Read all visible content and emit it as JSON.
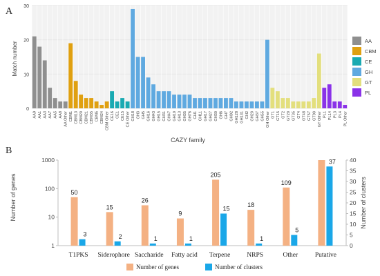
{
  "chart_data": [
    {
      "panel_label": "A",
      "type": "bar",
      "ylabel": "Match number",
      "xlabel": "CAZY family",
      "ylim": [
        0,
        30
      ],
      "yticks": [
        0,
        10,
        20,
        30
      ],
      "grid": true,
      "legend_position": "right",
      "legend": [
        {
          "name": "AA",
          "color": "#8f8f8f"
        },
        {
          "name": "CBM",
          "color": "#e0a010"
        },
        {
          "name": "CE",
          "color": "#19aab2"
        },
        {
          "name": "GH",
          "color": "#5fa9e0"
        },
        {
          "name": "GT",
          "color": "#e3df7d"
        },
        {
          "name": "PL",
          "color": "#8a32e8"
        }
      ],
      "categories": [
        "AA9",
        "AA1",
        "AA3",
        "AA7",
        "AA5",
        "AA8",
        "AA Other",
        "CBM1",
        "CBM13",
        "CBM20",
        "CBM21",
        "CBM35",
        "CBM5",
        "CBM24",
        "CBM Other",
        "CE16",
        "CE1",
        "CE15",
        "CE Other",
        "GH18",
        "GH3",
        "GH5",
        "GH16",
        "GH43",
        "GH15",
        "GH31",
        "GH47",
        "GH10",
        "GH13",
        "GH35",
        "GH76",
        "GH1",
        "GH11",
        "GH17",
        "GH27",
        "GH30",
        "GH6",
        "GH7",
        "GH92",
        "GH128",
        "GH131",
        "GH2",
        "GH20",
        "GH37",
        "GH55",
        "GH Other",
        "GT1",
        "GT15",
        "GT2",
        "GT20",
        "GT35",
        "GT4",
        "GT48",
        "GT57",
        "GT90",
        "GT Other",
        "PL1",
        "PL14",
        "PL3",
        "PL4",
        "PL Other"
      ],
      "values": [
        21,
        18,
        14,
        6,
        3,
        2,
        2,
        19,
        8,
        4,
        3,
        3,
        2,
        1,
        2,
        5,
        2,
        3,
        2,
        29,
        15,
        15,
        9,
        7,
        5,
        5,
        5,
        4,
        4,
        4,
        4,
        3,
        3,
        3,
        3,
        3,
        3,
        3,
        3,
        2,
        2,
        2,
        2,
        2,
        2,
        20,
        6,
        5,
        3,
        3,
        2,
        2,
        2,
        2,
        3,
        16,
        6,
        7,
        2,
        2,
        1
      ],
      "group_sizes": [
        7,
        8,
        4,
        27,
        10,
        5
      ]
    },
    {
      "panel_label": "B",
      "type": "bar",
      "categories": [
        "T1PKS",
        "Siderophore",
        "Saccharide",
        "Fatty acid",
        "Terpene",
        "NRPS",
        "Other",
        "Putative"
      ],
      "series": [
        {
          "name": "Number of genes",
          "axis": "left",
          "color": "#f4b183",
          "values": [
            50,
            15,
            26,
            9,
            205,
            18,
            109,
            1000
          ],
          "labels": [
            "50",
            "15",
            "26",
            "9",
            "205",
            "18",
            "109",
            ""
          ]
        },
        {
          "name": "Number of clusters",
          "axis": "right",
          "color": "#1aa7e8",
          "values": [
            3,
            2,
            1,
            1,
            15,
            1,
            5,
            37
          ],
          "labels": [
            "3",
            "2",
            "1",
            "1",
            "15",
            "1",
            "5",
            "37"
          ]
        }
      ],
      "ylabel": "Number of genes",
      "ylabel_right": "Number of clusters",
      "yscale": "log",
      "ylim": [
        1,
        1000
      ],
      "yticks": [
        "1",
        "10",
        "100",
        "1000"
      ],
      "ylim_right": [
        0,
        40
      ],
      "yticks_right": [
        "0",
        "5",
        "10",
        "15",
        "20",
        "25",
        "30",
        "35",
        "40"
      ],
      "legend_position": "bottom"
    }
  ]
}
